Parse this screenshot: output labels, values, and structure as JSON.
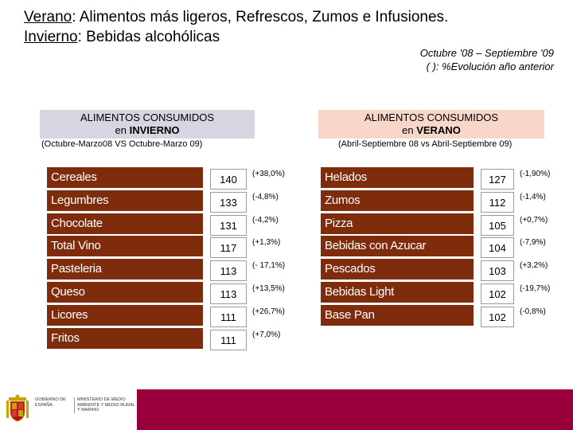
{
  "header": {
    "line1_label": "Verano",
    "line1_text": ": Alimentos más ligeros, Refrescos, Zumos e Infusiones.",
    "line2_label": "Invierno",
    "line2_text": ": Bebidas alcohólicas"
  },
  "period": {
    "range": "Octubre '08 – Septiembre '09",
    "note": "( ): %Evolución año anterior"
  },
  "winter": {
    "title_line1": "ALIMENTOS CONSUMIDOS",
    "title_prefix": "en ",
    "title_season": "INVIERNO",
    "subtitle": "(Octubre-Marzo08 VS Octubre-Marzo 09)",
    "rows": [
      {
        "label": "Cereales",
        "value": "140",
        "change": "(+38,0%)"
      },
      {
        "label": "Legumbres",
        "value": "133",
        "change": "(-4,8%)"
      },
      {
        "label": "Chocolate",
        "value": "131",
        "change": "(-4,2%)"
      },
      {
        "label": "Total Vino",
        "value": "117",
        "change": "(+1,3%)"
      },
      {
        "label": "Pasteleria",
        "value": "113",
        "change": "(- 17,1%)"
      },
      {
        "label": "Queso",
        "value": "113",
        "change": "(+13,5%)"
      },
      {
        "label": "Licores",
        "value": "111",
        "change": "(+26,7%)"
      },
      {
        "label": "Fritos",
        "value": "111",
        "change": "(+7,0%)"
      }
    ]
  },
  "summer": {
    "title_line1": "ALIMENTOS CONSUMIDOS",
    "title_prefix": "en ",
    "title_season": "VERANO",
    "subtitle": "(Abril-Septiembre 08 vs Abril-Septiembre 09)",
    "rows": [
      {
        "label": "Helados",
        "value": "127",
        "change": "(-1,90%)"
      },
      {
        "label": "Zumos",
        "value": "112",
        "change": "(-1,4%)"
      },
      {
        "label": "Pizza",
        "value": "105",
        "change": "(+0,7%)"
      },
      {
        "label": "Bebidas con Azucar",
        "value": "104",
        "change": "(-7,9%)"
      },
      {
        "label": "Pescados",
        "value": "103",
        "change": "(+3,2%)"
      },
      {
        "label": "Bebidas Light",
        "value": "102",
        "change": "(-19,7%)"
      },
      {
        "label": "Base Pan",
        "value": "102",
        "change": "(-0,8%)"
      }
    ]
  },
  "footer": {
    "gov_text": "GOBIERNO DE ESPAÑA",
    "ministry_text": "MINISTERIO DE MEDIO AMBIENTE Y MEDIO RURAL Y MARINO",
    "brand_color": "#99003b",
    "shield_icon": "coat-of-arms-icon"
  },
  "colors": {
    "label_bg": "#7e2c0c",
    "winter_head_bg": "#d5d6e2",
    "summer_head_bg": "#f7d7c8"
  }
}
